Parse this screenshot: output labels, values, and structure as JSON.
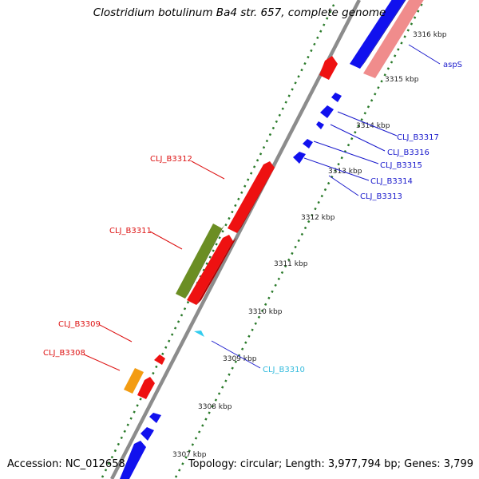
{
  "title": "Clostridium botulinum Ba4 str. 657, complete genome",
  "accession": "Accession: NC_012658",
  "topology": "Topology: circular; Length: 3,977,794 bp; Genes: 3,799",
  "colors": {
    "backbone": "#8c8c8c",
    "forward_cds": "#ee1111",
    "reverse_cds": "#1111ee",
    "trna": "#33ccee",
    "rrna": "#f08c8c",
    "green_feature": "#6b8e23",
    "orange_feature": "#f39c12",
    "ticks": "#2a7a2a",
    "right_labels": "#1a1acc",
    "left_labels": "#dd1111"
  },
  "scale_labels": [
    "3316 kbp",
    "3315 kbp",
    "3314 kbp",
    "3313 kbp",
    "3312 kbp",
    "3311 kbp",
    "3310 kbp",
    "3309 kbp",
    "3308 kbp",
    "3307 kbp"
  ],
  "gene_labels_right": [
    "aspS",
    "CLJ_B3317",
    "CLJ_B3316",
    "CLJ_B3315",
    "CLJ_B3314",
    "CLJ_B3313",
    "CLJ_B3310"
  ],
  "gene_labels_left": [
    "CLJ_B3312",
    "CLJ_B3311",
    "CLJ_B3309",
    "CLJ_B3308"
  ]
}
